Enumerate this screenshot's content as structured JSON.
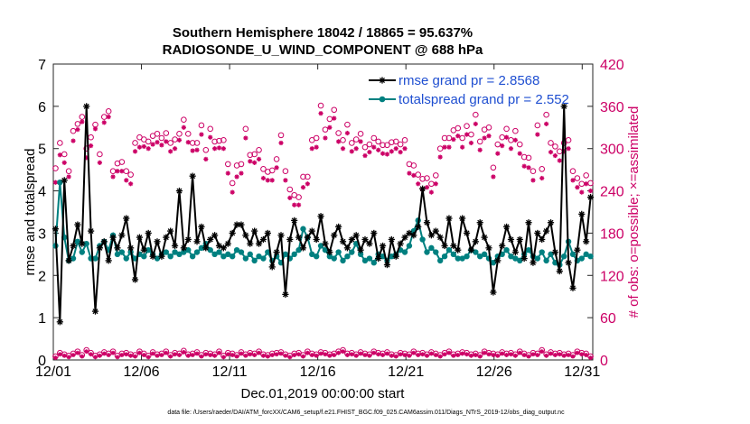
{
  "chart_data": {
    "type": "line",
    "title": "Southern Hemisphere 18042 / 18865 = 95.637%",
    "subtitle": "RADIOSONDE_U_WIND_COMPONENT @ 688 hPa",
    "xlabel": "Dec.01,2019 00:00:00 start",
    "ylabel_left": "rmse and totalspread",
    "ylabel_right": "# of obs: o=possible; ×=assimilated",
    "footnote": "data file: /Users/raeder/DAI/ATM_forcXX/CAM6_setup/f.e21.FHIST_BGC.f09_025.CAM6assim.011/Diags_NTrS_2019-12/obs_diag_output.nc",
    "x_tick_labels": [
      "12/01",
      "12/06",
      "12/11",
      "12/16",
      "12/21",
      "12/26",
      "12/31"
    ],
    "x_tick_values": [
      1,
      6,
      11,
      16,
      21,
      26,
      31
    ],
    "xlim": [
      1,
      31.6
    ],
    "ylim_left": [
      0,
      7
    ],
    "ylim_right": [
      0,
      420
    ],
    "y_ticks_left": [
      "0",
      "1",
      "2",
      "3",
      "4",
      "5",
      "6",
      "7"
    ],
    "y_ticks_right": [
      "0",
      "60",
      "120",
      "180",
      "240",
      "300",
      "360",
      "420"
    ],
    "colors": {
      "rmse": "#000000",
      "spread": "#008080",
      "obs": "#cc0066",
      "legend_text": "#1f4fd1"
    },
    "series": [
      {
        "name": "rmse grand pr = 2.8568",
        "values": [
          3.1,
          0.9,
          4.25,
          2.35,
          2.7,
          3.2,
          2.75,
          6.0,
          3.05,
          1.15,
          2.65,
          2.8,
          2.35,
          2.9,
          2.65,
          2.95,
          3.35,
          2.65,
          1.9,
          2.9,
          2.6,
          3.0,
          2.45,
          2.8,
          2.45,
          2.9,
          3.05,
          2.7,
          4.0,
          2.65,
          2.85,
          4.35,
          2.8,
          3.15,
          2.65,
          2.85,
          2.95,
          2.7,
          2.65,
          2.75,
          3.0,
          3.2,
          3.2,
          2.95,
          2.75,
          3.05,
          2.75,
          2.85,
          3.0,
          2.2,
          2.55,
          2.95,
          1.55,
          2.85,
          3.3,
          2.9,
          2.65,
          2.9,
          3.05,
          2.85,
          3.4,
          2.75,
          2.55,
          2.95,
          3.15,
          2.8,
          2.65,
          2.85,
          2.95,
          2.6,
          2.85,
          2.75,
          3.0,
          2.4,
          2.7,
          2.25,
          2.85,
          2.45,
          2.75,
          2.9,
          3.0,
          2.95,
          3.15,
          4.05,
          3.25,
          2.95,
          3.05,
          2.9,
          2.7,
          3.35,
          2.7,
          2.6,
          3.35,
          3.0,
          2.6,
          2.8,
          3.25,
          2.9,
          2.65,
          1.6,
          2.35,
          2.7,
          3.15,
          2.85,
          2.55,
          2.85,
          2.4,
          3.25,
          2.3,
          3.0,
          2.85,
          3.05,
          3.25,
          2.55,
          2.1,
          6.0,
          2.3,
          1.7,
          2.6,
          3.45,
          2.8,
          3.85
        ],
        "color": "#000000"
      },
      {
        "name": "totalspread grand pr = 2.552",
        "values": [
          2.7,
          4.2,
          2.9,
          2.35,
          2.4,
          2.8,
          2.55,
          2.75,
          2.4,
          2.4,
          2.7,
          2.8,
          2.6,
          2.95,
          2.5,
          2.55,
          2.4,
          2.55,
          2.4,
          2.5,
          2.45,
          2.6,
          2.5,
          2.4,
          2.5,
          2.55,
          2.45,
          2.55,
          2.5,
          2.55,
          2.6,
          2.45,
          2.55,
          2.65,
          2.75,
          2.6,
          2.5,
          2.55,
          2.45,
          2.5,
          2.45,
          2.6,
          2.55,
          2.4,
          2.5,
          2.35,
          2.45,
          2.4,
          2.55,
          2.35,
          2.45,
          2.3,
          2.5,
          2.4,
          2.5,
          2.6,
          3.1,
          2.9,
          2.5,
          2.45,
          2.7,
          2.6,
          2.45,
          2.4,
          2.55,
          2.35,
          2.45,
          2.55,
          2.75,
          2.5,
          2.35,
          2.4,
          2.3,
          2.5,
          2.45,
          2.35,
          2.45,
          2.5,
          2.6,
          2.55,
          2.7,
          3.05,
          3.3,
          2.85,
          2.55,
          2.65,
          2.55,
          2.35,
          2.45,
          2.6,
          2.5,
          2.4,
          2.4,
          2.45,
          2.6,
          2.55,
          2.45,
          2.5,
          2.4,
          2.3,
          2.45,
          2.5,
          2.6,
          2.45,
          2.4,
          2.35,
          2.5,
          2.6,
          2.45,
          2.4,
          2.55,
          2.35,
          2.5,
          2.3,
          2.25,
          2.45,
          2.8,
          2.5,
          2.35,
          2.4,
          2.5,
          2.45
        ],
        "color": "#008080"
      },
      {
        "name": "obs possible (o)",
        "axis": "right",
        "values": [
          272,
          308,
          292,
          268,
          325,
          335,
          345,
          300,
          316,
          334,
          292,
          345,
          353,
          268,
          279,
          281,
          268,
          263,
          308,
          316,
          313,
          310,
          318,
          321,
          315,
          322,
          308,
          313,
          321,
          341,
          321,
          308,
          308,
          333,
          298,
          328,
          310,
          311,
          312,
          278,
          251,
          276,
          278,
          328,
          291,
          292,
          298,
          271,
          267,
          269,
          285,
          319,
          268,
          242,
          234,
          231,
          260,
          260,
          312,
          315,
          361,
          327,
          342,
          355,
          322,
          312,
          334,
          308,
          313,
          321,
          302,
          306,
          315,
          310,
          305,
          305,
          309,
          310,
          306,
          312,
          278,
          276,
          263,
          257,
          258,
          250,
          262,
          300,
          315,
          315,
          326,
          329,
          315,
          332,
          320,
          348,
          310,
          327,
          330,
          273,
          306,
          316,
          328,
          312,
          325,
          306,
          288,
          287,
          268,
          333,
          271,
          348,
          308,
          303,
          296,
          308,
          312,
          268,
          258,
          250,
          262,
          251
        ],
        "color": "#cc0066"
      },
      {
        "name": "obs assimilated (×)",
        "axis": "right",
        "values": [
          252,
          291,
          280,
          260,
          311,
          327,
          338,
          287,
          304,
          328,
          280,
          337,
          345,
          260,
          268,
          268,
          255,
          250,
          296,
          302,
          303,
          300,
          306,
          309,
          305,
          310,
          296,
          300,
          312,
          330,
          309,
          297,
          298,
          320,
          285,
          316,
          300,
          301,
          300,
          265,
          238,
          260,
          265,
          315,
          282,
          280,
          285,
          258,
          255,
          255,
          273,
          308,
          255,
          230,
          220,
          220,
          245,
          250,
          300,
          302,
          350,
          315,
          330,
          343,
          310,
          300,
          322,
          296,
          300,
          310,
          290,
          295,
          302,
          298,
          293,
          292,
          296,
          300,
          295,
          300,
          265,
          262,
          250,
          242,
          245,
          238,
          250,
          288,
          302,
          302,
          313,
          318,
          302,
          320,
          308,
          335,
          298,
          315,
          318,
          260,
          293,
          304,
          316,
          300,
          312,
          293,
          275,
          273,
          255,
          320,
          258,
          335,
          295,
          290,
          283,
          296,
          300,
          255,
          245,
          238,
          250,
          240
        ],
        "color": "#cc0066"
      },
      {
        "name": "obs possible bottom (o)",
        "axis": "right",
        "values": [
          5,
          10,
          8,
          6,
          9,
          12,
          7,
          14,
          10,
          6,
          8,
          11,
          9,
          12,
          6,
          9,
          10,
          8,
          7,
          12,
          9,
          6,
          11,
          8,
          9,
          12,
          7,
          10,
          9,
          13,
          8,
          9,
          11,
          7,
          10,
          9,
          8,
          12,
          6,
          10,
          9,
          7,
          11,
          8,
          10,
          9,
          12,
          8,
          7,
          9,
          10,
          11,
          8,
          6,
          9,
          10,
          7,
          12,
          9,
          8,
          11,
          10,
          8,
          9,
          12,
          14,
          9,
          10,
          8,
          11,
          9,
          8,
          12,
          10,
          9,
          11,
          8,
          7,
          10,
          9,
          8,
          12,
          9,
          10,
          8,
          11,
          9,
          7,
          10,
          12,
          8,
          9,
          11,
          10,
          8,
          9,
          7,
          12,
          10,
          9,
          8,
          11,
          9,
          10,
          8,
          12,
          9,
          7,
          10,
          9,
          14,
          8,
          11,
          9,
          10,
          8,
          9,
          7,
          12,
          10,
          9,
          5
        ],
        "color": "#cc0066"
      },
      {
        "name": "obs assimilated bottom (×)",
        "axis": "right",
        "values": [
          3,
          8,
          6,
          4,
          7,
          10,
          5,
          12,
          8,
          4,
          6,
          9,
          7,
          10,
          4,
          7,
          8,
          6,
          5,
          10,
          7,
          4,
          9,
          6,
          7,
          10,
          5,
          8,
          7,
          11,
          6,
          7,
          9,
          5,
          8,
          7,
          6,
          10,
          4,
          8,
          7,
          5,
          9,
          6,
          8,
          7,
          10,
          6,
          5,
          7,
          8,
          9,
          6,
          4,
          7,
          8,
          5,
          10,
          7,
          6,
          9,
          8,
          6,
          7,
          10,
          12,
          7,
          8,
          6,
          9,
          7,
          6,
          10,
          8,
          7,
          9,
          6,
          5,
          8,
          7,
          6,
          10,
          7,
          8,
          6,
          9,
          7,
          5,
          8,
          10,
          6,
          7,
          9,
          8,
          6,
          7,
          5,
          10,
          8,
          7,
          6,
          9,
          7,
          8,
          6,
          10,
          7,
          5,
          8,
          7,
          12,
          6,
          9,
          7,
          8,
          6,
          7,
          5,
          10,
          8,
          7,
          3
        ],
        "color": "#cc0066"
      }
    ]
  }
}
